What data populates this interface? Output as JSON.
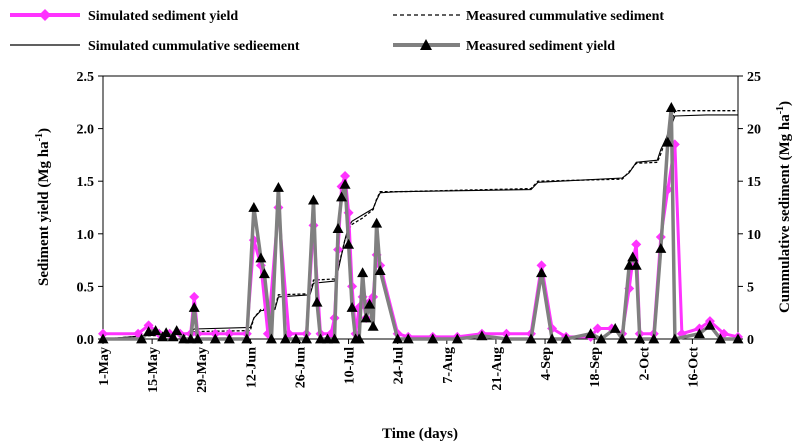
{
  "chart_data": {
    "type": "line",
    "xlabel": "Time (days)",
    "ylabel_left": "Sediment yield (Mg ha-1)",
    "ylabel_left_parts": {
      "base": "Sediment yield (Mg ha",
      "sup": "-1",
      "tail": ")"
    },
    "ylabel_right": "Cummulative sediment (Mg ha-1)",
    "ylabel_right_parts": {
      "base": "Cummulative sediment (Mg ha",
      "sup": "-1",
      "tail": ")"
    },
    "x_range": [
      "2000-05-01",
      "2000-10-29"
    ],
    "x_ticks": [
      "2000-05-01",
      "2000-05-15",
      "2000-05-29",
      "2000-06-12",
      "2000-06-26",
      "2000-07-10",
      "2000-07-24",
      "2000-08-07",
      "2000-08-21",
      "2000-09-04",
      "2000-09-18",
      "2000-10-02",
      "2000-10-16"
    ],
    "x_tick_labels": [
      "1-May",
      "15-May",
      "29-May",
      "12-Jun",
      "26-Jun",
      "10-Jul",
      "24-Jul",
      "7-Aug",
      "21-Aug",
      "4-Sep",
      "18-Sep",
      "2-Oct",
      "16-Oct"
    ],
    "ylim_left": [
      0,
      2.5
    ],
    "y_ticks_left": [
      0,
      0.5,
      1.0,
      1.5,
      2.0,
      2.5
    ],
    "y_tick_labels_left": [
      "0.0",
      "0.5",
      "1.0",
      "1.5",
      "2.0",
      "2.5"
    ],
    "ylim_right": [
      0,
      25
    ],
    "y_ticks_right": [
      0,
      5,
      10,
      15,
      20,
      25
    ],
    "y_tick_labels_right": [
      "0",
      "5",
      "10",
      "15",
      "20",
      "25"
    ],
    "legend_position": "top",
    "series": [
      {
        "name": "Simulated sediment yield",
        "axis": "left",
        "color": "#ff33ff",
        "marker": "diamond",
        "points": [
          [
            "2000-05-01",
            0.05
          ],
          [
            "2000-05-11",
            0.05
          ],
          [
            "2000-05-14",
            0.13
          ],
          [
            "2000-05-17",
            0.05
          ],
          [
            "2000-05-20",
            0.05
          ],
          [
            "2000-05-23",
            0.05
          ],
          [
            "2000-05-26",
            0.05
          ],
          [
            "2000-05-27",
            0.4
          ],
          [
            "2000-05-28",
            0.05
          ],
          [
            "2000-06-02",
            0.05
          ],
          [
            "2000-06-06",
            0.05
          ],
          [
            "2000-06-11",
            0.05
          ],
          [
            "2000-06-13",
            0.94
          ],
          [
            "2000-06-15",
            0.7
          ],
          [
            "2000-06-17",
            0.05
          ],
          [
            "2000-06-20",
            1.25
          ],
          [
            "2000-06-23",
            0.05
          ],
          [
            "2000-06-28",
            0.05
          ],
          [
            "2000-06-30",
            1.08
          ],
          [
            "2000-07-02",
            0.05
          ],
          [
            "2000-07-05",
            0.05
          ],
          [
            "2000-07-06",
            0.2
          ],
          [
            "2000-07-07",
            0.85
          ],
          [
            "2000-07-08",
            1.45
          ],
          [
            "2000-07-09",
            1.55
          ],
          [
            "2000-07-10",
            1.2
          ],
          [
            "2000-07-11",
            0.5
          ],
          [
            "2000-07-12",
            0.05
          ],
          [
            "2000-07-13",
            0.3
          ],
          [
            "2000-07-14",
            0.4
          ],
          [
            "2000-07-15",
            0.2
          ],
          [
            "2000-07-16",
            0.35
          ],
          [
            "2000-07-17",
            0.4
          ],
          [
            "2000-07-18",
            0.8
          ],
          [
            "2000-07-19",
            0.7
          ],
          [
            "2000-07-24",
            0.05
          ],
          [
            "2000-07-27",
            0.02
          ],
          [
            "2000-08-03",
            0.02
          ],
          [
            "2000-08-10",
            0.02
          ],
          [
            "2000-08-17",
            0.05
          ],
          [
            "2000-08-24",
            0.05
          ],
          [
            "2000-08-31",
            0.05
          ],
          [
            "2000-09-03",
            0.7
          ],
          [
            "2000-09-06",
            0.1
          ],
          [
            "2000-09-10",
            0.02
          ],
          [
            "2000-09-17",
            0.02
          ],
          [
            "2000-09-19",
            0.1
          ],
          [
            "2000-09-23",
            0.1
          ],
          [
            "2000-09-26",
            0.05
          ],
          [
            "2000-09-28",
            0.48
          ],
          [
            "2000-09-29",
            0.75
          ],
          [
            "2000-09-30",
            0.9
          ],
          [
            "2000-10-01",
            0.05
          ],
          [
            "2000-10-05",
            0.05
          ],
          [
            "2000-10-07",
            0.97
          ],
          [
            "2000-10-09",
            1.42
          ],
          [
            "2000-10-11",
            1.85
          ],
          [
            "2000-10-13",
            0.05
          ],
          [
            "2000-10-18",
            0.1
          ],
          [
            "2000-10-21",
            0.17
          ],
          [
            "2000-10-25",
            0.05
          ],
          [
            "2000-10-29",
            0.02
          ]
        ]
      },
      {
        "name": "Measured sediment yield",
        "axis": "left",
        "color": "#808080",
        "marker": "triangle",
        "points": [
          [
            "2000-05-01",
            0.0
          ],
          [
            "2000-05-12",
            0.0
          ],
          [
            "2000-05-14",
            0.07
          ],
          [
            "2000-05-16",
            0.08
          ],
          [
            "2000-05-18",
            0.02
          ],
          [
            "2000-05-19",
            0.06
          ],
          [
            "2000-05-21",
            0.02
          ],
          [
            "2000-05-22",
            0.08
          ],
          [
            "2000-05-24",
            0.0
          ],
          [
            "2000-05-26",
            0.0
          ],
          [
            "2000-05-27",
            0.3
          ],
          [
            "2000-05-28",
            0.0
          ],
          [
            "2000-06-02",
            0.0
          ],
          [
            "2000-06-06",
            0.0
          ],
          [
            "2000-06-11",
            0.0
          ],
          [
            "2000-06-13",
            1.25
          ],
          [
            "2000-06-15",
            0.77
          ],
          [
            "2000-06-16",
            0.62
          ],
          [
            "2000-06-18",
            0.0
          ],
          [
            "2000-06-20",
            1.44
          ],
          [
            "2000-06-22",
            0.0
          ],
          [
            "2000-06-25",
            0.0
          ],
          [
            "2000-06-28",
            0.0
          ],
          [
            "2000-06-30",
            1.32
          ],
          [
            "2000-07-01",
            0.35
          ],
          [
            "2000-07-02",
            0.0
          ],
          [
            "2000-07-04",
            0.0
          ],
          [
            "2000-07-06",
            0.0
          ],
          [
            "2000-07-07",
            1.05
          ],
          [
            "2000-07-08",
            1.35
          ],
          [
            "2000-07-09",
            1.47
          ],
          [
            "2000-07-10",
            0.9
          ],
          [
            "2000-07-11",
            0.3
          ],
          [
            "2000-07-12",
            0.0
          ],
          [
            "2000-07-13",
            0.0
          ],
          [
            "2000-07-14",
            0.63
          ],
          [
            "2000-07-15",
            0.2
          ],
          [
            "2000-07-16",
            0.33
          ],
          [
            "2000-07-17",
            0.12
          ],
          [
            "2000-07-18",
            1.1
          ],
          [
            "2000-07-19",
            0.65
          ],
          [
            "2000-07-24",
            0.0
          ],
          [
            "2000-07-27",
            0.0
          ],
          [
            "2000-08-03",
            0.0
          ],
          [
            "2000-08-10",
            0.0
          ],
          [
            "2000-08-17",
            0.03
          ],
          [
            "2000-08-24",
            0.0
          ],
          [
            "2000-08-31",
            0.0
          ],
          [
            "2000-09-03",
            0.63
          ],
          [
            "2000-09-06",
            0.0
          ],
          [
            "2000-09-10",
            0.0
          ],
          [
            "2000-09-17",
            0.05
          ],
          [
            "2000-09-20",
            0.0
          ],
          [
            "2000-09-24",
            0.1
          ],
          [
            "2000-09-26",
            0.0
          ],
          [
            "2000-09-28",
            0.7
          ],
          [
            "2000-09-29",
            0.78
          ],
          [
            "2000-09-30",
            0.7
          ],
          [
            "2000-10-01",
            0.0
          ],
          [
            "2000-10-05",
            0.0
          ],
          [
            "2000-10-07",
            0.86
          ],
          [
            "2000-10-09",
            1.87
          ],
          [
            "2000-10-10",
            2.2
          ],
          [
            "2000-10-11",
            0.0
          ],
          [
            "2000-10-18",
            0.05
          ],
          [
            "2000-10-21",
            0.13
          ],
          [
            "2000-10-24",
            0.0
          ],
          [
            "2000-10-29",
            0.0
          ]
        ]
      },
      {
        "name": "Simulated cummulative sedieement",
        "axis": "right",
        "color": "#000000",
        "style": "solid",
        "points": [
          [
            "2000-05-01",
            0.0
          ],
          [
            "2000-05-13",
            0.3
          ],
          [
            "2000-05-26",
            0.6
          ],
          [
            "2000-05-27",
            0.95
          ],
          [
            "2000-06-12",
            1.1
          ],
          [
            "2000-06-13",
            2.0
          ],
          [
            "2000-06-15",
            2.7
          ],
          [
            "2000-06-19",
            2.8
          ],
          [
            "2000-06-20",
            4.0
          ],
          [
            "2000-06-29",
            4.2
          ],
          [
            "2000-06-30",
            5.3
          ],
          [
            "2000-07-06",
            5.5
          ],
          [
            "2000-07-07",
            6.5
          ],
          [
            "2000-07-08",
            8.0
          ],
          [
            "2000-07-09",
            9.5
          ],
          [
            "2000-07-10",
            10.7
          ],
          [
            "2000-07-11",
            11.2
          ],
          [
            "2000-07-14",
            11.8
          ],
          [
            "2000-07-17",
            12.4
          ],
          [
            "2000-07-18",
            13.2
          ],
          [
            "2000-07-19",
            13.9
          ],
          [
            "2000-07-24",
            14.0
          ],
          [
            "2000-08-31",
            14.2
          ],
          [
            "2000-09-02",
            14.9
          ],
          [
            "2000-09-26",
            15.3
          ],
          [
            "2000-09-28",
            15.8
          ],
          [
            "2000-09-30",
            16.8
          ],
          [
            "2000-10-06",
            17.0
          ],
          [
            "2000-10-07",
            18.0
          ],
          [
            "2000-10-09",
            19.4
          ],
          [
            "2000-10-11",
            21.2
          ],
          [
            "2000-10-20",
            21.3
          ],
          [
            "2000-10-29",
            21.3
          ]
        ]
      },
      {
        "name": "Measured cummulative sediment",
        "axis": "right",
        "color": "#000000",
        "style": "dashed",
        "points": [
          [
            "2000-05-01",
            0.0
          ],
          [
            "2000-05-13",
            0.3
          ],
          [
            "2000-05-26",
            0.4
          ],
          [
            "2000-05-27",
            0.7
          ],
          [
            "2000-06-12",
            0.8
          ],
          [
            "2000-06-13",
            2.0
          ],
          [
            "2000-06-15",
            2.8
          ],
          [
            "2000-06-19",
            2.9
          ],
          [
            "2000-06-20",
            4.2
          ],
          [
            "2000-06-29",
            4.3
          ],
          [
            "2000-06-30",
            5.6
          ],
          [
            "2000-07-06",
            5.7
          ],
          [
            "2000-07-07",
            6.7
          ],
          [
            "2000-07-08",
            8.1
          ],
          [
            "2000-07-09",
            9.5
          ],
          [
            "2000-07-10",
            10.4
          ],
          [
            "2000-07-11",
            10.9
          ],
          [
            "2000-07-14",
            11.5
          ],
          [
            "2000-07-17",
            12.3
          ],
          [
            "2000-07-18",
            13.3
          ],
          [
            "2000-07-19",
            14.0
          ],
          [
            "2000-07-24",
            14.0
          ],
          [
            "2000-08-31",
            14.3
          ],
          [
            "2000-09-02",
            15.0
          ],
          [
            "2000-09-26",
            15.2
          ],
          [
            "2000-09-28",
            15.9
          ],
          [
            "2000-09-30",
            16.7
          ],
          [
            "2000-10-06",
            16.8
          ],
          [
            "2000-10-07",
            17.6
          ],
          [
            "2000-10-09",
            19.5
          ],
          [
            "2000-10-11",
            21.7
          ],
          [
            "2000-10-20",
            21.7
          ],
          [
            "2000-10-29",
            21.7
          ]
        ]
      }
    ]
  },
  "legend": [
    {
      "label": "Simulated sediment yield",
      "marker": "diamond-icon",
      "color": "#ff33ff"
    },
    {
      "label": "Measured cummulative sediment",
      "marker": "dashed-line",
      "color": "#000000"
    },
    {
      "label": "Simulated cummulative sedieement",
      "marker": "solid-line",
      "color": "#000000"
    },
    {
      "label": "Measured sediment yield",
      "marker": "triangle-icon",
      "color": "#808080"
    }
  ]
}
